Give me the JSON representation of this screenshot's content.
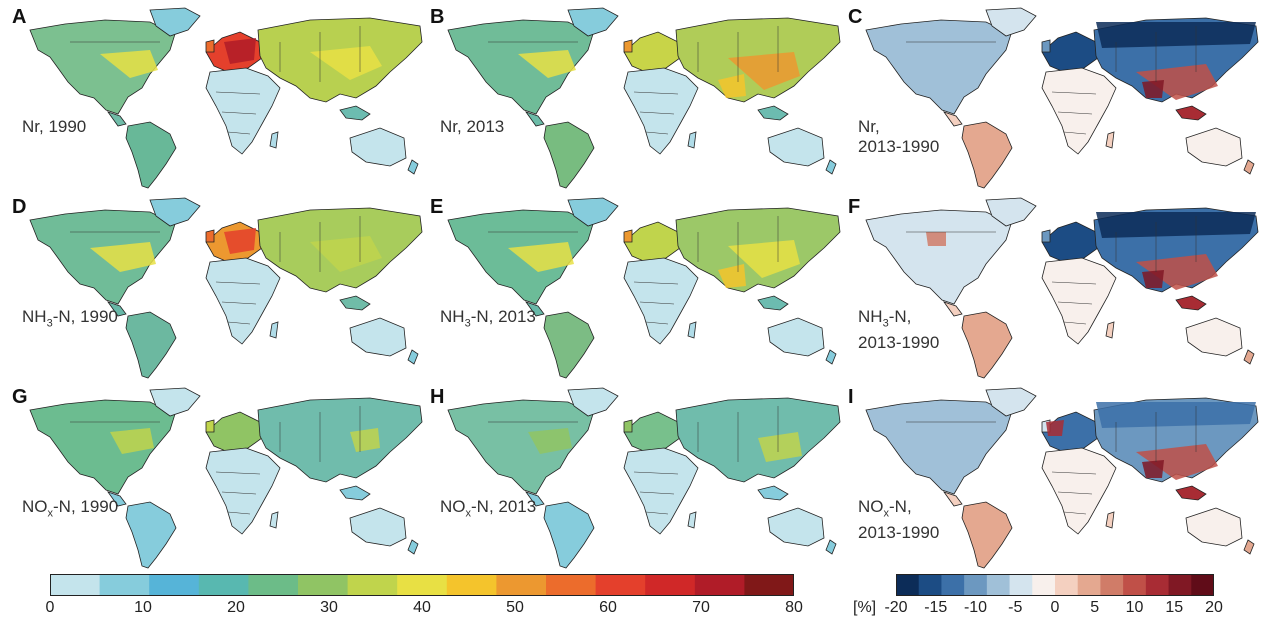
{
  "panels": [
    {
      "id": "A",
      "label": "Nr, 1990",
      "type": "abs",
      "scheme": "nr1990"
    },
    {
      "id": "B",
      "label": "Nr, 2013",
      "type": "abs",
      "scheme": "nr2013"
    },
    {
      "id": "C",
      "label": "Nr,",
      "label2": "2013-1990",
      "type": "diff",
      "scheme": "nrdiff"
    },
    {
      "id": "D",
      "label": "NH",
      "sub": "3",
      "labelRest": "-N, 1990",
      "type": "abs",
      "scheme": "nh1990"
    },
    {
      "id": "E",
      "label": "NH",
      "sub": "3",
      "labelRest": "-N, 2013",
      "type": "abs",
      "scheme": "nh2013"
    },
    {
      "id": "F",
      "label": "NH",
      "sub": "3",
      "labelRest": "-N,",
      "label2": "2013-1990",
      "type": "diff",
      "scheme": "nhdiff"
    },
    {
      "id": "G",
      "label": "NO",
      "sub": "x",
      "labelRest": "-N, 1990",
      "type": "abs",
      "scheme": "no1990"
    },
    {
      "id": "H",
      "label": "NO",
      "sub": "x",
      "labelRest": "-N, 2013",
      "type": "abs",
      "scheme": "no2013"
    },
    {
      "id": "I",
      "label": "NO",
      "sub": "x",
      "labelRest": "-N,",
      "label2": "2013-1990",
      "type": "diff",
      "scheme": "nodiff"
    }
  ],
  "colorbar_abs": {
    "colors": [
      "#c4e4ec",
      "#86ccdc",
      "#56b4d8",
      "#58b8b0",
      "#6cbc88",
      "#90c464",
      "#c0d44c",
      "#e8e044",
      "#f4c42c",
      "#ec9830",
      "#ec6c2c",
      "#e4402c",
      "#d02828",
      "#b01c28",
      "#801818"
    ],
    "ticks": [
      "0",
      "10",
      "20",
      "30",
      "40",
      "50",
      "60",
      "70",
      "80"
    ]
  },
  "colorbar_diff": {
    "colors": [
      "#0c2c58",
      "#1c4c84",
      "#3c70a8",
      "#6c98c0",
      "#a0c0d8",
      "#d4e4ee",
      "#f8f0ec",
      "#f4d0c0",
      "#e4a890",
      "#d07c68",
      "#c05048",
      "#a82c34",
      "#801824",
      "#600c18"
    ],
    "ticks": [
      "-20",
      "-15",
      "-10",
      "-5",
      "0",
      "5",
      "10",
      "15",
      "20"
    ],
    "unit": "[%]"
  }
}
